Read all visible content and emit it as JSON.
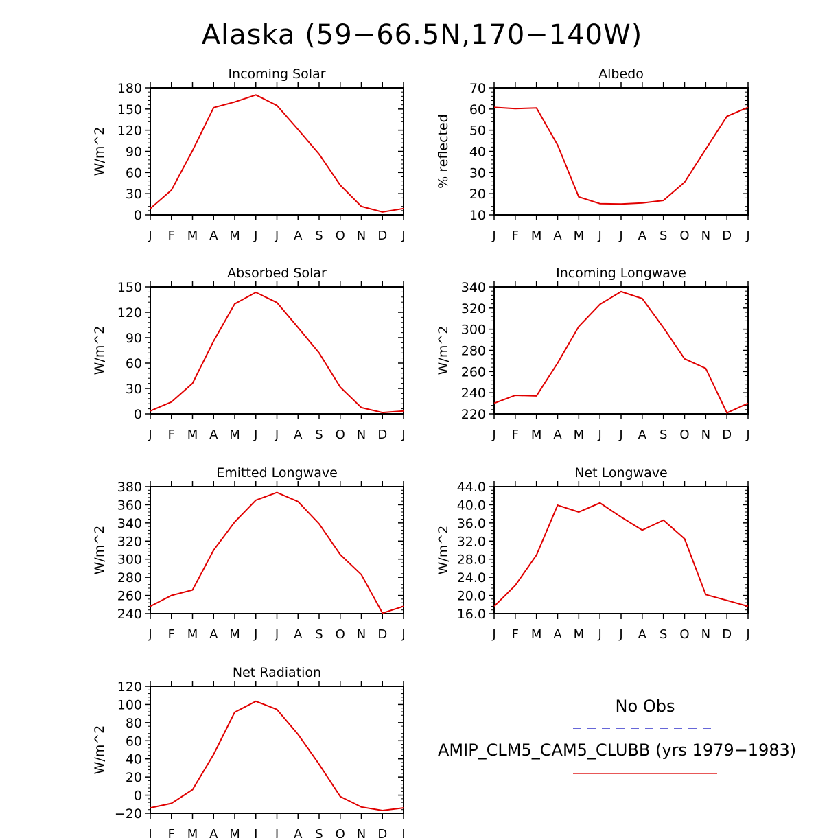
{
  "title": "Alaska (59−66.5N,170−140W)",
  "legend": {
    "obs_label": "No Obs",
    "obs_color": "#3333cc",
    "model_label": "AMIP_CLM5_CAM5_CLUBB (yrs 1979−1983)",
    "model_color": "#e02020"
  },
  "line_color": "#e00000",
  "chart_data": [
    {
      "type": "line",
      "title": "Incoming Solar",
      "ylabel": "W/m^2",
      "categories": [
        "J",
        "F",
        "M",
        "A",
        "M",
        "J",
        "J",
        "A",
        "S",
        "O",
        "N",
        "D",
        "J"
      ],
      "ylim": [
        0,
        180
      ],
      "yticks": [
        0,
        30,
        60,
        90,
        120,
        150,
        180
      ],
      "tick_decimals": 0,
      "values": [
        9,
        35,
        91,
        152,
        160,
        170,
        155,
        121,
        86,
        42,
        12,
        4,
        9
      ]
    },
    {
      "type": "line",
      "title": "Albedo",
      "ylabel": "% reflected",
      "categories": [
        "J",
        "F",
        "M",
        "A",
        "M",
        "J",
        "J",
        "A",
        "S",
        "O",
        "N",
        "D",
        "J"
      ],
      "ylim": [
        10,
        70
      ],
      "yticks": [
        10,
        20,
        30,
        40,
        50,
        60,
        70
      ],
      "tick_decimals": 0,
      "values": [
        60.8,
        60.2,
        60.5,
        43,
        18.5,
        15.3,
        15.1,
        15.6,
        16.8,
        25.4,
        41,
        56.5,
        60.8
      ]
    },
    {
      "type": "line",
      "title": "Absorbed Solar",
      "ylabel": "W/m^2",
      "categories": [
        "J",
        "F",
        "M",
        "A",
        "M",
        "J",
        "J",
        "A",
        "S",
        "O",
        "N",
        "D",
        "J"
      ],
      "ylim": [
        0,
        150
      ],
      "yticks": [
        0,
        30,
        60,
        90,
        120,
        150
      ],
      "tick_decimals": 0,
      "values": [
        3.5,
        14,
        36,
        86,
        130,
        143.5,
        131.5,
        102,
        72,
        31.5,
        7.5,
        1.5,
        3.5
      ]
    },
    {
      "type": "line",
      "title": "Incoming Longwave",
      "ylabel": "W/m^2",
      "categories": [
        "J",
        "F",
        "M",
        "A",
        "M",
        "J",
        "J",
        "A",
        "S",
        "O",
        "N",
        "D",
        "J"
      ],
      "ylim": [
        220,
        340
      ],
      "yticks": [
        220,
        240,
        260,
        280,
        300,
        320,
        340
      ],
      "tick_decimals": 0,
      "values": [
        230,
        237.5,
        237,
        268,
        302.5,
        323.5,
        335.5,
        329,
        301.5,
        272,
        263,
        221,
        230
      ]
    },
    {
      "type": "line",
      "title": "Emitted Longwave",
      "ylabel": "W/m^2",
      "categories": [
        "J",
        "F",
        "M",
        "A",
        "M",
        "J",
        "J",
        "A",
        "S",
        "O",
        "N",
        "D",
        "J"
      ],
      "ylim": [
        240,
        380
      ],
      "yticks": [
        240,
        260,
        280,
        300,
        320,
        340,
        360,
        380
      ],
      "tick_decimals": 0,
      "values": [
        248,
        260,
        266,
        310,
        341,
        365,
        373.5,
        363.5,
        339,
        305,
        283,
        240.5,
        248
      ]
    },
    {
      "type": "line",
      "title": "Net Longwave",
      "ylabel": "W/m^2",
      "categories": [
        "J",
        "F",
        "M",
        "A",
        "M",
        "J",
        "J",
        "A",
        "S",
        "O",
        "N",
        "D",
        "J"
      ],
      "ylim": [
        16,
        44
      ],
      "yticks": [
        16,
        20,
        24,
        28,
        32,
        36,
        40,
        44
      ],
      "tick_decimals": 1,
      "values": [
        17.6,
        22.2,
        28.9,
        39.9,
        38.4,
        40.4,
        37.3,
        34.4,
        36.6,
        32.5,
        20.2,
        18.9,
        17.6
      ]
    },
    {
      "type": "line",
      "title": "Net Radiation",
      "ylabel": "W/m^2",
      "categories": [
        "J",
        "F",
        "M",
        "A",
        "M",
        "J",
        "J",
        "A",
        "S",
        "O",
        "N",
        "D",
        "J"
      ],
      "ylim": [
        -20,
        120
      ],
      "yticks": [
        -20,
        0,
        20,
        40,
        60,
        80,
        100,
        120
      ],
      "tick_decimals": 0,
      "values": [
        -14,
        -9,
        6,
        45,
        91.5,
        103.5,
        94.5,
        67,
        34,
        -1.5,
        -13,
        -17,
        -14
      ]
    }
  ]
}
